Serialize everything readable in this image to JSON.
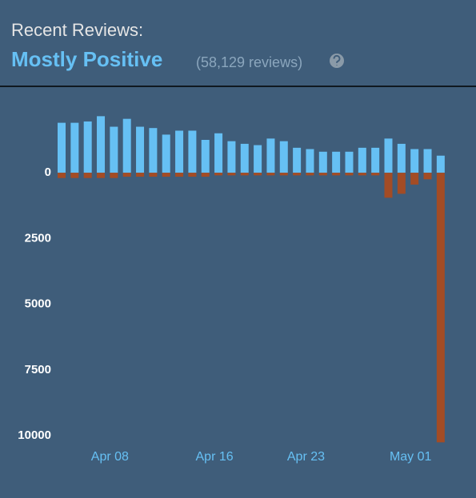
{
  "header": {
    "label": "Recent Reviews:",
    "rating": "Mostly Positive",
    "count": "(58,129 reviews)"
  },
  "chart_data": {
    "type": "bar",
    "categories": [
      null,
      null,
      null,
      null,
      "Apr 08",
      null,
      null,
      null,
      null,
      null,
      null,
      null,
      "Apr 16",
      null,
      null,
      null,
      null,
      null,
      null,
      "Apr 23",
      null,
      null,
      null,
      null,
      null,
      null,
      null,
      "May 01",
      null,
      null
    ],
    "series": [
      {
        "color": "#66c0f4",
        "values": [
          1900,
          1900,
          1950,
          2150,
          1750,
          2050,
          1750,
          1700,
          1450,
          1600,
          1600,
          1250,
          1500,
          1200,
          1100,
          1050,
          1300,
          1200,
          950,
          900,
          800,
          800,
          800,
          950,
          950,
          1300,
          1100,
          900,
          900,
          650
        ]
      },
      {
        "color": "#a34c25",
        "values": [
          -200,
          -200,
          -200,
          -200,
          -200,
          -150,
          -150,
          -150,
          -150,
          -150,
          -150,
          -150,
          -100,
          -100,
          -100,
          -100,
          -100,
          -100,
          -100,
          -100,
          -100,
          -100,
          -100,
          -100,
          -100,
          -950,
          -800,
          -450,
          -250,
          -10250
        ]
      }
    ],
    "ylim": [
      -10300,
      3225
    ],
    "yticks": [
      0,
      {
        "value": -2500,
        "label": "2500"
      },
      {
        "value": -5000,
        "label": "5000"
      },
      {
        "value": -7500,
        "label": "7500"
      },
      {
        "value": -10000,
        "label": "10000"
      }
    ]
  }
}
